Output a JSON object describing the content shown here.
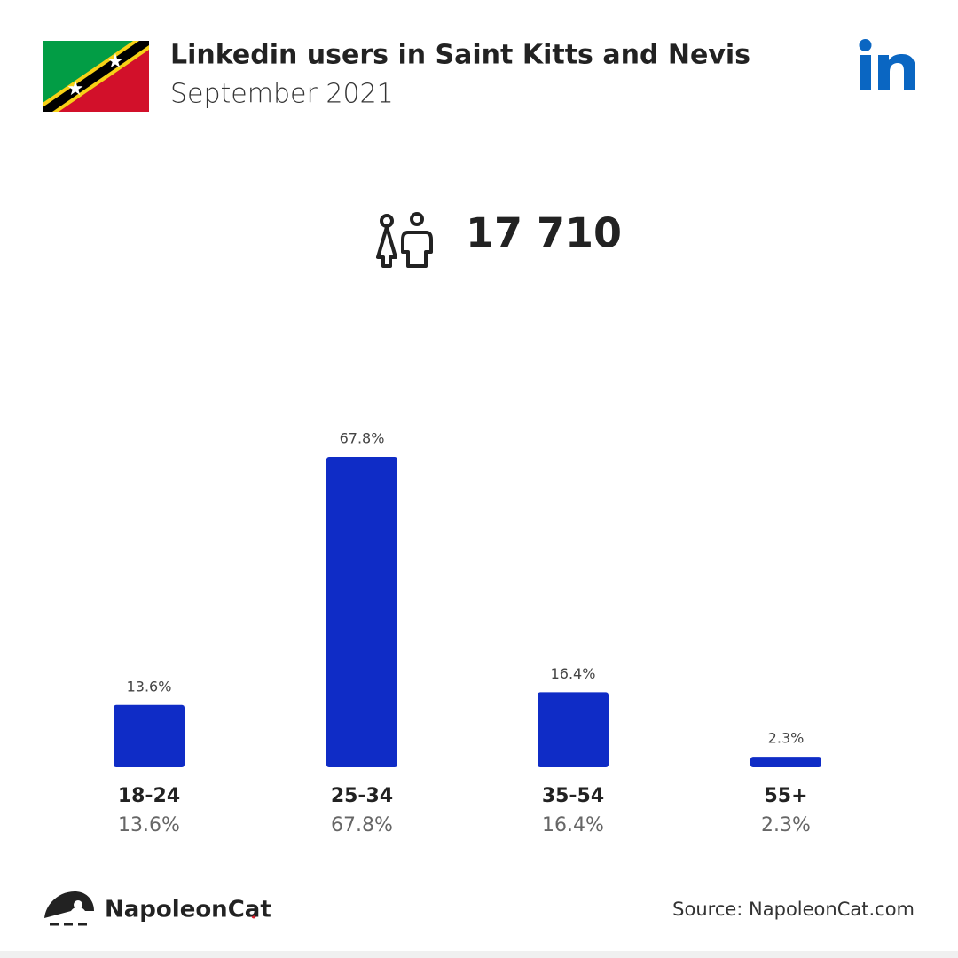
{
  "header": {
    "title": "Linkedin users in Saint Kitts and Nevis",
    "subtitle": "September 2021"
  },
  "total_users": "17 710",
  "chart_data": {
    "type": "bar",
    "categories": [
      "18-24",
      "25-34",
      "35-54",
      "55+"
    ],
    "values": [
      13.6,
      67.8,
      16.4,
      2.3
    ],
    "value_labels": [
      "13.6%",
      "67.8%",
      "16.4%",
      "2.3%"
    ],
    "color": "#0f2cc6"
  },
  "footer": {
    "brand": "NapoleonCat",
    "source": "Source: NapoleonCat.com"
  }
}
